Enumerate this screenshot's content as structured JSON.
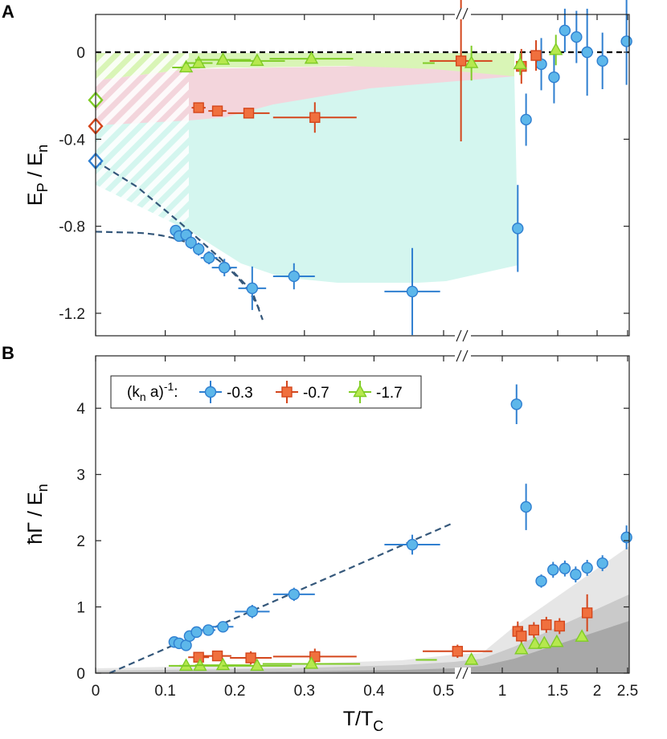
{
  "figure": {
    "x_label_main": "T/T",
    "x_label_sub": "C"
  },
  "colors": {
    "blue_fill": "#5db7ea",
    "blue_edge": "#2f7fd0",
    "red_fill": "#f0703e",
    "red_edge": "#d4461c",
    "green_fill": "#b6e84e",
    "green_edge": "#7fcc26",
    "dashed": "#34577a",
    "green_region": "#d9f5b6",
    "pink_region": "#f3d5dc",
    "cyan_region": "#d4f6ef",
    "gray1": "#e6e6e6",
    "gray2": "#cacaca",
    "gray3": "#a8a8a8"
  },
  "chart_data": [
    {
      "panel": "A",
      "type": "scatter",
      "ylabel_main": "E",
      "ylabel_sub1": "P",
      "ylabel_mid": " / E",
      "ylabel_sub2": "n",
      "ylim": [
        -1.3,
        0.15
      ],
      "y_ticks": [
        0,
        -0.4,
        -0.8,
        -1.2
      ],
      "y_tick_labels": [
        "0",
        "-0.4",
        "-0.8",
        "-1.2"
      ],
      "x_scale": "broken: linear 0-0.6, then log 1-2.5",
      "series": [
        {
          "name": "-0.3",
          "marker": "circle",
          "color": "blue",
          "points": [
            {
              "x": 0.115,
              "y": -0.82,
              "xerr": 0.005,
              "yerr": 0.015
            },
            {
              "x": 0.12,
              "y": -0.845,
              "xerr": 0.005,
              "yerr": 0.015
            },
            {
              "x": 0.13,
              "y": -0.84,
              "xerr": 0.006,
              "yerr": 0.02
            },
            {
              "x": 0.137,
              "y": -0.875,
              "xerr": 0.006,
              "yerr": 0.03
            },
            {
              "x": 0.148,
              "y": -0.905,
              "xerr": 0.008,
              "yerr": 0.03
            },
            {
              "x": 0.163,
              "y": -0.945,
              "xerr": 0.012,
              "yerr": 0.03
            },
            {
              "x": 0.185,
              "y": -0.99,
              "xerr": 0.018,
              "yerr": 0.04
            },
            {
              "x": 0.225,
              "y": -1.085,
              "xerr": 0.02,
              "yerr": 0.1
            },
            {
              "x": 0.285,
              "y": -1.03,
              "xerr": 0.03,
              "yerr": 0.06
            },
            {
              "x": 0.455,
              "y": -1.1,
              "xerr": 0.04,
              "yerr": 0.2
            },
            {
              "x": 1.12,
              "y": -0.81,
              "xerr": 0.02,
              "yerr": 0.2
            },
            {
              "x": 1.19,
              "y": -0.31,
              "xerr": 0.02,
              "yerr": 0.12
            },
            {
              "x": 1.33,
              "y": -0.055,
              "xerr": 0.03,
              "yerr": 0.12
            },
            {
              "x": 1.46,
              "y": -0.115,
              "xerr": 0.03,
              "yerr": 0.12
            },
            {
              "x": 1.58,
              "y": 0.1,
              "xerr": 0.03,
              "yerr": 0.1
            },
            {
              "x": 1.72,
              "y": 0.07,
              "xerr": 0.03,
              "yerr": 0.12
            },
            {
              "x": 1.86,
              "y": 0.0,
              "xerr": 0.04,
              "yerr": 0.2
            },
            {
              "x": 2.08,
              "y": -0.04,
              "xerr": 0.04,
              "yerr": 0.13
            },
            {
              "x": 2.48,
              "y": 0.05,
              "xerr": 0.05,
              "yerr": 0.2
            }
          ]
        },
        {
          "name": "-0.7",
          "marker": "square",
          "color": "red",
          "points": [
            {
              "x": 0.148,
              "y": -0.255,
              "xerr": 0.01,
              "yerr": 0.02
            },
            {
              "x": 0.175,
              "y": -0.27,
              "xerr": 0.013,
              "yerr": 0.02
            },
            {
              "x": 0.22,
              "y": -0.28,
              "xerr": 0.03,
              "yerr": 0.02
            },
            {
              "x": 0.315,
              "y": -0.3,
              "xerr": 0.06,
              "yerr": 0.07
            },
            {
              "x": 0.525,
              "y": -0.04,
              "xerr": 0.045,
              "yerr": 0.37
            },
            {
              "x": 1.15,
              "y": -0.065,
              "xerr": 0.03,
              "yerr": 0.08
            },
            {
              "x": 1.28,
              "y": -0.015,
              "xerr": 0.03,
              "yerr": 0.07
            }
          ]
        },
        {
          "name": "-1.7",
          "marker": "triangle",
          "color": "green",
          "points": [
            {
              "x": 0.13,
              "y": -0.07,
              "xerr": 0.02,
              "yerr": 0.015
            },
            {
              "x": 0.148,
              "y": -0.05,
              "xerr": 0.02,
              "yerr": 0.015
            },
            {
              "x": 0.183,
              "y": -0.035,
              "xerr": 0.04,
              "yerr": 0.015
            },
            {
              "x": 0.232,
              "y": -0.04,
              "xerr": 0.04,
              "yerr": 0.015
            },
            {
              "x": 0.31,
              "y": -0.03,
              "xerr": 0.06,
              "yerr": 0.015
            },
            {
              "x": 0.54,
              "y": -0.05,
              "xerr": 0.07,
              "yerr": 0.08
            },
            {
              "x": 1.14,
              "y": -0.055,
              "xerr": 0.03,
              "yerr": 0.05
            },
            {
              "x": 1.48,
              "y": 0.01,
              "xerr": 0.04,
              "yerr": 0.07
            }
          ]
        }
      ],
      "axis_markers": [
        {
          "name": "-1.7",
          "color": "green",
          "y": -0.22
        },
        {
          "name": "-0.7",
          "color": "red",
          "y": -0.34
        },
        {
          "name": "-0.3",
          "color": "blue",
          "y": -0.5
        }
      ],
      "reference_line": {
        "y": 0,
        "style": "dashed"
      }
    },
    {
      "panel": "B",
      "type": "scatter",
      "ylabel_main": "ħΓ / E",
      "ylabel_sub": "n",
      "ylim": [
        0,
        4.6
      ],
      "y_ticks": [
        0,
        1,
        2,
        3,
        4
      ],
      "y_tick_labels": [
        "0",
        "1",
        "2",
        "3",
        "4"
      ],
      "x_ticks": [
        0,
        0.1,
        0.2,
        0.3,
        0.4,
        0.5,
        1,
        1.5,
        2,
        2.5
      ],
      "x_tick_labels": [
        "0",
        "0.1",
        "0.2",
        "0.3",
        "0.4",
        "0.5",
        "1",
        "1.5",
        "2",
        "2.5"
      ],
      "legend": {
        "title": "(k",
        "title_sub": "n",
        "title_rest": " a)",
        "title_sup": "-1",
        "title_colon": ":",
        "placement": "top-left"
      },
      "series": [
        {
          "name": "-0.3",
          "marker": "circle",
          "color": "blue",
          "points": [
            {
              "x": 0.113,
              "y": 0.47,
              "xerr": 0.005,
              "yerr": 0.03
            },
            {
              "x": 0.12,
              "y": 0.45,
              "xerr": 0.005,
              "yerr": 0.03
            },
            {
              "x": 0.13,
              "y": 0.42,
              "xerr": 0.005,
              "yerr": 0.05
            },
            {
              "x": 0.135,
              "y": 0.56,
              "xerr": 0.005,
              "yerr": 0.03
            },
            {
              "x": 0.145,
              "y": 0.62,
              "xerr": 0.007,
              "yerr": 0.03
            },
            {
              "x": 0.162,
              "y": 0.65,
              "xerr": 0.01,
              "yerr": 0.04
            },
            {
              "x": 0.183,
              "y": 0.7,
              "xerr": 0.015,
              "yerr": 0.04
            },
            {
              "x": 0.225,
              "y": 0.93,
              "xerr": 0.025,
              "yerr": 0.1
            },
            {
              "x": 0.285,
              "y": 1.19,
              "xerr": 0.03,
              "yerr": 0.1
            },
            {
              "x": 0.455,
              "y": 1.94,
              "xerr": 0.04,
              "yerr": 0.15
            },
            {
              "x": 1.11,
              "y": 4.06,
              "xerr": 0.02,
              "yerr": 0.3
            },
            {
              "x": 1.19,
              "y": 2.51,
              "xerr": 0.02,
              "yerr": 0.35
            },
            {
              "x": 1.33,
              "y": 1.39,
              "xerr": 0.03,
              "yerr": 0.1
            },
            {
              "x": 1.45,
              "y": 1.56,
              "xerr": 0.03,
              "yerr": 0.12
            },
            {
              "x": 1.58,
              "y": 1.58,
              "xerr": 0.03,
              "yerr": 0.12
            },
            {
              "x": 1.71,
              "y": 1.49,
              "xerr": 0.03,
              "yerr": 0.12
            },
            {
              "x": 1.86,
              "y": 1.59,
              "xerr": 0.04,
              "yerr": 0.12
            },
            {
              "x": 2.08,
              "y": 1.66,
              "xerr": 0.04,
              "yerr": 0.12
            },
            {
              "x": 2.48,
              "y": 2.05,
              "xerr": 0.05,
              "yerr": 0.18
            }
          ]
        },
        {
          "name": "-0.7",
          "marker": "square",
          "color": "red",
          "points": [
            {
              "x": 0.148,
              "y": 0.24,
              "xerr": 0.015,
              "yerr": 0.05
            },
            {
              "x": 0.175,
              "y": 0.26,
              "xerr": 0.02,
              "yerr": 0.06
            },
            {
              "x": 0.223,
              "y": 0.23,
              "xerr": 0.03,
              "yerr": 0.1
            },
            {
              "x": 0.315,
              "y": 0.25,
              "xerr": 0.06,
              "yerr": 0.12
            },
            {
              "x": 0.52,
              "y": 0.33,
              "xerr": 0.05,
              "yerr": 0.1
            },
            {
              "x": 1.12,
              "y": 0.63,
              "xerr": 0.03,
              "yerr": 0.15
            },
            {
              "x": 1.15,
              "y": 0.56,
              "xerr": 0.03,
              "yerr": 0.12
            },
            {
              "x": 1.26,
              "y": 0.65,
              "xerr": 0.03,
              "yerr": 0.12
            },
            {
              "x": 1.38,
              "y": 0.73,
              "xerr": 0.03,
              "yerr": 0.12
            },
            {
              "x": 1.52,
              "y": 0.71,
              "xerr": 0.03,
              "yerr": 0.12
            },
            {
              "x": 1.86,
              "y": 0.91,
              "xerr": 0.04,
              "yerr": 0.28
            }
          ]
        },
        {
          "name": "-1.7",
          "marker": "triangle",
          "color": "green",
          "points": [
            {
              "x": 0.13,
              "y": 0.11,
              "xerr": 0.025,
              "yerr": 0.04
            },
            {
              "x": 0.15,
              "y": 0.11,
              "xerr": 0.03,
              "yerr": 0.04
            },
            {
              "x": 0.183,
              "y": 0.12,
              "xerr": 0.04,
              "yerr": 0.04
            },
            {
              "x": 0.232,
              "y": 0.11,
              "xerr": 0.05,
              "yerr": 0.04
            },
            {
              "x": 0.31,
              "y": 0.14,
              "xerr": 0.07,
              "yerr": 0.04
            },
            {
              "x": 0.54,
              "y": 0.2,
              "xerr": 0.08,
              "yerr": 0.05
            },
            {
              "x": 1.15,
              "y": 0.36,
              "xerr": 0.03,
              "yerr": 0.06
            },
            {
              "x": 1.27,
              "y": 0.44,
              "xerr": 0.03,
              "yerr": 0.06
            },
            {
              "x": 1.36,
              "y": 0.45,
              "xerr": 0.03,
              "yerr": 0.06
            },
            {
              "x": 1.49,
              "y": 0.47,
              "xerr": 0.03,
              "yerr": 0.06
            },
            {
              "x": 1.79,
              "y": 0.55,
              "xerr": 0.04,
              "yerr": 0.06
            }
          ]
        }
      ],
      "fit_line": {
        "x": [
          0.02,
          0.51
        ],
        "y": [
          0,
          2.25
        ],
        "style": "dashed"
      }
    }
  ]
}
